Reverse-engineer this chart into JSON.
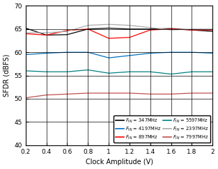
{
  "title": "",
  "xlabel": "Clock Amplitude (V)",
  "ylabel": "SFDR (dBFS)",
  "xlim": [
    0.2,
    2.0
  ],
  "ylim": [
    40,
    70
  ],
  "yticks": [
    40,
    45,
    50,
    55,
    60,
    65,
    70
  ],
  "xticks": [
    0.2,
    0.4,
    0.6,
    0.8,
    1.0,
    1.2,
    1.4,
    1.6,
    1.8,
    2.0
  ],
  "series": [
    {
      "label": "F_IN = 347MHz",
      "color": "#000000",
      "x": [
        0.2,
        0.4,
        0.6,
        0.8,
        1.0,
        1.2,
        1.4,
        1.6,
        1.8,
        2.0
      ],
      "y": [
        65.2,
        63.7,
        63.8,
        65.0,
        65.2,
        65.0,
        65.0,
        65.1,
        64.8,
        64.5
      ]
    },
    {
      "label": "F_IN = 897MHz",
      "color": "#ff0000",
      "x": [
        0.2,
        0.4,
        0.6,
        0.8,
        1.0,
        1.2,
        1.4,
        1.6,
        1.8,
        2.0
      ],
      "y": [
        64.0,
        63.7,
        64.7,
        65.0,
        63.0,
        63.2,
        64.8,
        65.0,
        64.8,
        64.8
      ]
    },
    {
      "label": "F_IN = 2397MHz",
      "color": "#aaaaaa",
      "x": [
        0.2,
        0.4,
        0.6,
        0.8,
        1.0,
        1.2,
        1.4,
        1.6,
        1.8,
        2.0
      ],
      "y": [
        64.2,
        64.2,
        64.5,
        65.8,
        66.0,
        65.8,
        65.3,
        64.8,
        65.0,
        65.0
      ]
    },
    {
      "label": "F_IN = 4197MHz",
      "color": "#0070c0",
      "x": [
        0.2,
        0.4,
        0.6,
        0.8,
        1.0,
        1.2,
        1.4,
        1.6,
        1.8,
        2.0
      ],
      "y": [
        59.5,
        59.8,
        60.0,
        60.0,
        58.8,
        59.3,
        59.8,
        60.0,
        60.0,
        59.8
      ]
    },
    {
      "label": "F_IN = 5597MHz",
      "color": "#008080",
      "x": [
        0.2,
        0.4,
        0.6,
        0.8,
        1.0,
        1.2,
        1.4,
        1.6,
        1.8,
        2.0
      ],
      "y": [
        56.0,
        55.8,
        55.8,
        56.2,
        55.5,
        55.8,
        55.8,
        55.3,
        55.8,
        55.8
      ]
    },
    {
      "label": "F_IN = 7997MHz",
      "color": "#c0504d",
      "x": [
        0.2,
        0.4,
        0.6,
        0.8,
        1.0,
        1.2,
        1.4,
        1.6,
        1.8,
        2.0
      ],
      "y": [
        50.2,
        50.8,
        51.0,
        51.2,
        51.2,
        51.2,
        51.0,
        51.0,
        51.2,
        51.2
      ]
    }
  ],
  "legend_col1": [
    {
      "label": "$F_{IN}$ = 347MHz",
      "color": "#000000"
    },
    {
      "label": "$F_{IN}$ = 897MHz",
      "color": "#ff0000"
    },
    {
      "label": "$F_{IN}$ = 2397MHz",
      "color": "#aaaaaa"
    }
  ],
  "legend_col2": [
    {
      "label": "$F_{IN}$ = 4197MHz",
      "color": "#0070c0"
    },
    {
      "label": "$F_{IN}$ = 5597MHz",
      "color": "#008080"
    },
    {
      "label": "$F_{IN}$ = 7997MHz",
      "color": "#c0504d"
    }
  ],
  "bg_color": "#ffffff",
  "grid_color": "#000000"
}
